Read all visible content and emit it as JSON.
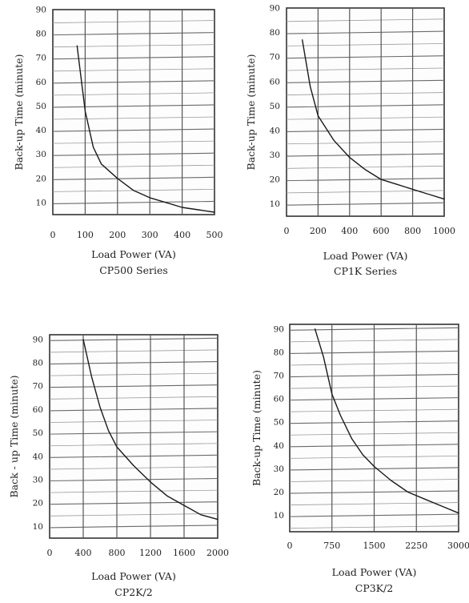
{
  "chart_data": [
    {
      "type": "line",
      "ylabel": "Back-up Time (minute)",
      "xlabel": "Load Power (VA)",
      "caption": "CP500 Series",
      "xticks": [
        0,
        100,
        200,
        300,
        400,
        500
      ],
      "xtick_labels": [
        "0",
        "100",
        "200",
        "300",
        "400",
        "500"
      ],
      "yticks": [
        10,
        20,
        30,
        40,
        50,
        60,
        70,
        80,
        90
      ],
      "xlim": [
        0,
        500
      ],
      "ylim": [
        5,
        90
      ],
      "grid": true,
      "series": [
        {
          "x": [
            75,
            100,
            125,
            150,
            200,
            250,
            300,
            350,
            400,
            450,
            500
          ],
          "y": [
            75,
            48,
            33,
            26,
            20,
            15,
            12,
            10,
            8,
            7,
            6
          ]
        }
      ]
    },
    {
      "type": "line",
      "ylabel": "Back-up Time (minute)",
      "xlabel": "Load Power (VA)",
      "caption": "CP1K Series",
      "xticks": [
        0,
        200,
        400,
        600,
        800,
        1000
      ],
      "xtick_labels": [
        "0",
        "200",
        "400",
        "600",
        "800",
        "1000"
      ],
      "yticks": [
        10,
        20,
        30,
        40,
        50,
        60,
        70,
        80,
        90
      ],
      "xlim": [
        0,
        1000
      ],
      "ylim": [
        5,
        90
      ],
      "grid": true,
      "series": [
        {
          "x": [
            100,
            150,
            200,
            300,
            400,
            500,
            600,
            700,
            800,
            900,
            1000
          ],
          "y": [
            77,
            58,
            46,
            36,
            29,
            24,
            20,
            18,
            16,
            14,
            12
          ]
        }
      ]
    },
    {
      "type": "line",
      "ylabel": "Back - up   Time (minute)",
      "xlabel": "Load Power (VA)",
      "caption": "CP2K/2",
      "xticks": [
        0,
        400,
        800,
        1200,
        1600,
        2000
      ],
      "xtick_labels": [
        "0",
        "400",
        "800",
        "1200",
        "1600",
        "2000"
      ],
      "yticks": [
        10,
        20,
        30,
        40,
        50,
        60,
        70,
        80,
        90
      ],
      "xlim": [
        0,
        2000
      ],
      "ylim": [
        5,
        92
      ],
      "grid": true,
      "series": [
        {
          "x": [
            400,
            500,
            600,
            700,
            800,
            1000,
            1200,
            1400,
            1600,
            1800,
            2000
          ],
          "y": [
            90,
            74,
            61,
            51,
            44,
            36,
            29,
            23,
            19,
            15,
            13
          ]
        }
      ]
    },
    {
      "type": "line",
      "ylabel": "Back-up Time (minute)",
      "xlabel": "Load Power (VA)",
      "caption": "CP3K/2",
      "xticks": [
        0,
        750,
        1500,
        2250,
        3000
      ],
      "xtick_labels": [
        "0",
        "750",
        "1500",
        "2250",
        "3000"
      ],
      "yticks": [
        10,
        20,
        30,
        40,
        50,
        60,
        70,
        80,
        90
      ],
      "xlim": [
        0,
        3000
      ],
      "ylim": [
        3,
        92
      ],
      "grid": true,
      "series": [
        {
          "x": [
            450,
            600,
            750,
            900,
            1100,
            1300,
            1500,
            1800,
            2100,
            2400,
            2700,
            3000
          ],
          "y": [
            90,
            78,
            62,
            53,
            43,
            36,
            31,
            25,
            20,
            17,
            14,
            11
          ]
        }
      ]
    }
  ]
}
